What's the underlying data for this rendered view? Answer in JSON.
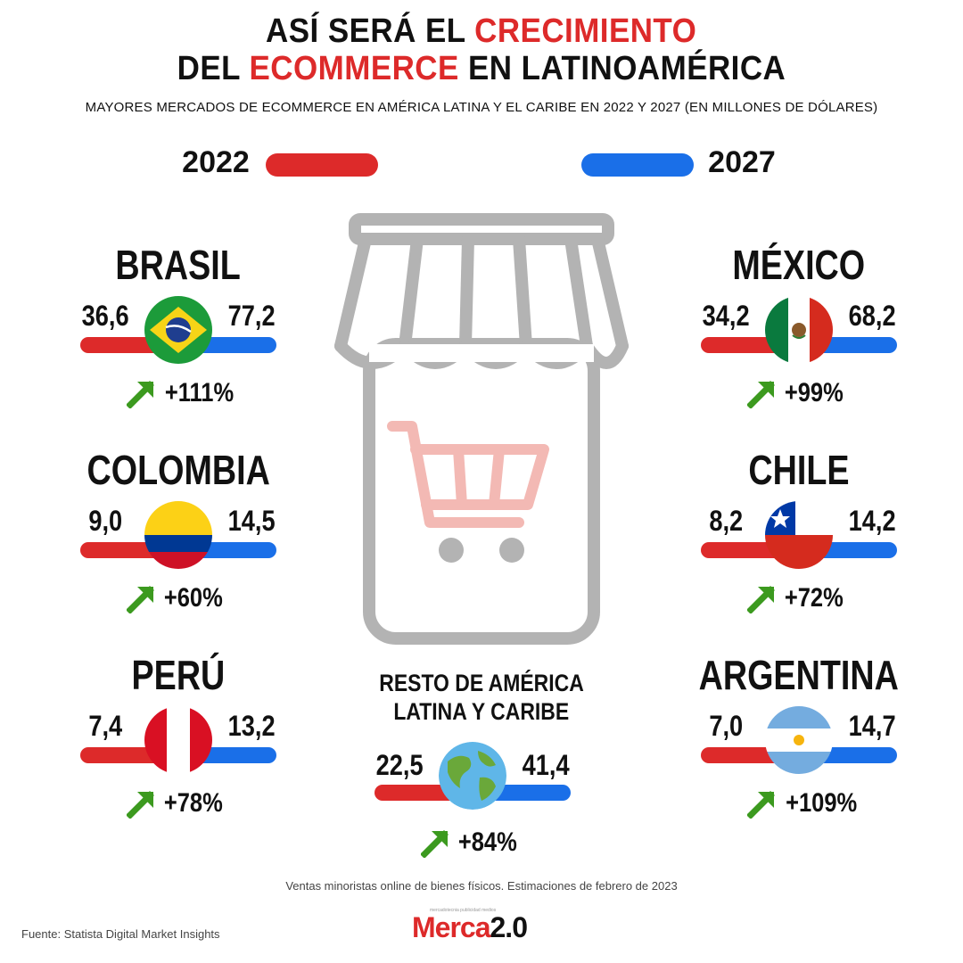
{
  "header": {
    "title_line1_pre": "ASÍ SERÁ EL ",
    "title_line1_hl": "CRECIMIENTO",
    "title_line2_pre": "DEL ",
    "title_line2_hl": "ECOMMERCE",
    "title_line2_post": " EN LATINOAMÉRICA",
    "subtitle": "MAYORES MERCADOS DE ECOMMERCE EN AMÉRICA LATINA Y EL CARIBE EN 2022 Y 2027 (EN MILLONES DE DÓLARES)"
  },
  "legend": {
    "year_left": "2022",
    "year_right": "2027"
  },
  "colors": {
    "red": "#dd2a2a",
    "blue": "#1a6fe8",
    "green": "#3c9a1f",
    "icon_gray": "#b3b3b3",
    "cart_pink": "#f3b9b4"
  },
  "countries": {
    "brasil": {
      "name": "BRASIL",
      "v2022": "36,6",
      "v2027": "77,2",
      "growth": "+111%",
      "flag_icon": "brazil-flag-icon"
    },
    "mexico": {
      "name": "MÉXICO",
      "v2022": "34,2",
      "v2027": "68,2",
      "growth": "+99%",
      "flag_icon": "mexico-flag-icon"
    },
    "colombia": {
      "name": "COLOMBIA",
      "v2022": "9,0",
      "v2027": "14,5",
      "growth": "+60%",
      "flag_icon": "colombia-flag-icon"
    },
    "chile": {
      "name": "CHILE",
      "v2022": "8,2",
      "v2027": "14,2",
      "growth": "+72%",
      "flag_icon": "chile-flag-icon"
    },
    "peru": {
      "name": "PERÚ",
      "v2022": "7,4",
      "v2027": "13,2",
      "growth": "+78%",
      "flag_icon": "peru-flag-icon"
    },
    "argentina": {
      "name": "ARGENTINA",
      "v2022": "7,0",
      "v2027": "14,7",
      "growth": "+109%",
      "flag_icon": "argentina-flag-icon"
    },
    "resto": {
      "name_line1": "RESTO DE AMÉRICA",
      "name_line2": "LATINA Y CARIBE",
      "v2022": "22,5",
      "v2027": "41,4",
      "growth": "+84%",
      "flag_icon": "globe-icon"
    }
  },
  "footer": {
    "note": "Ventas minoristas online de bienes físicos. Estimaciones de febrero de 2023",
    "source": "Fuente: Statista Digital Market Insights",
    "logo_text_a": "Merca",
    "logo_text_b": "2.0",
    "logo_tagline": "mercadotecnia publicidad medios"
  },
  "chart_data": {
    "type": "table",
    "columns": [
      "2022",
      "2027"
    ],
    "rows": [
      {
        "category": "BRASIL",
        "values": [
          36.6,
          77.2
        ],
        "growth_pct": 111
      },
      {
        "category": "MÉXICO",
        "values": [
          34.2,
          68.2
        ],
        "growth_pct": 99
      },
      {
        "category": "COLOMBIA",
        "values": [
          9.0,
          14.5
        ],
        "growth_pct": 60
      },
      {
        "category": "CHILE",
        "values": [
          8.2,
          14.2
        ],
        "growth_pct": 72
      },
      {
        "category": "PERÚ",
        "values": [
          7.4,
          13.2
        ],
        "growth_pct": 78
      },
      {
        "category": "ARGENTINA",
        "values": [
          7.0,
          14.7
        ],
        "growth_pct": 109
      },
      {
        "category": "RESTO DE AMÉRICA LATINA Y CARIBE",
        "values": [
          22.5,
          41.4
        ],
        "growth_pct": 84
      }
    ]
  }
}
